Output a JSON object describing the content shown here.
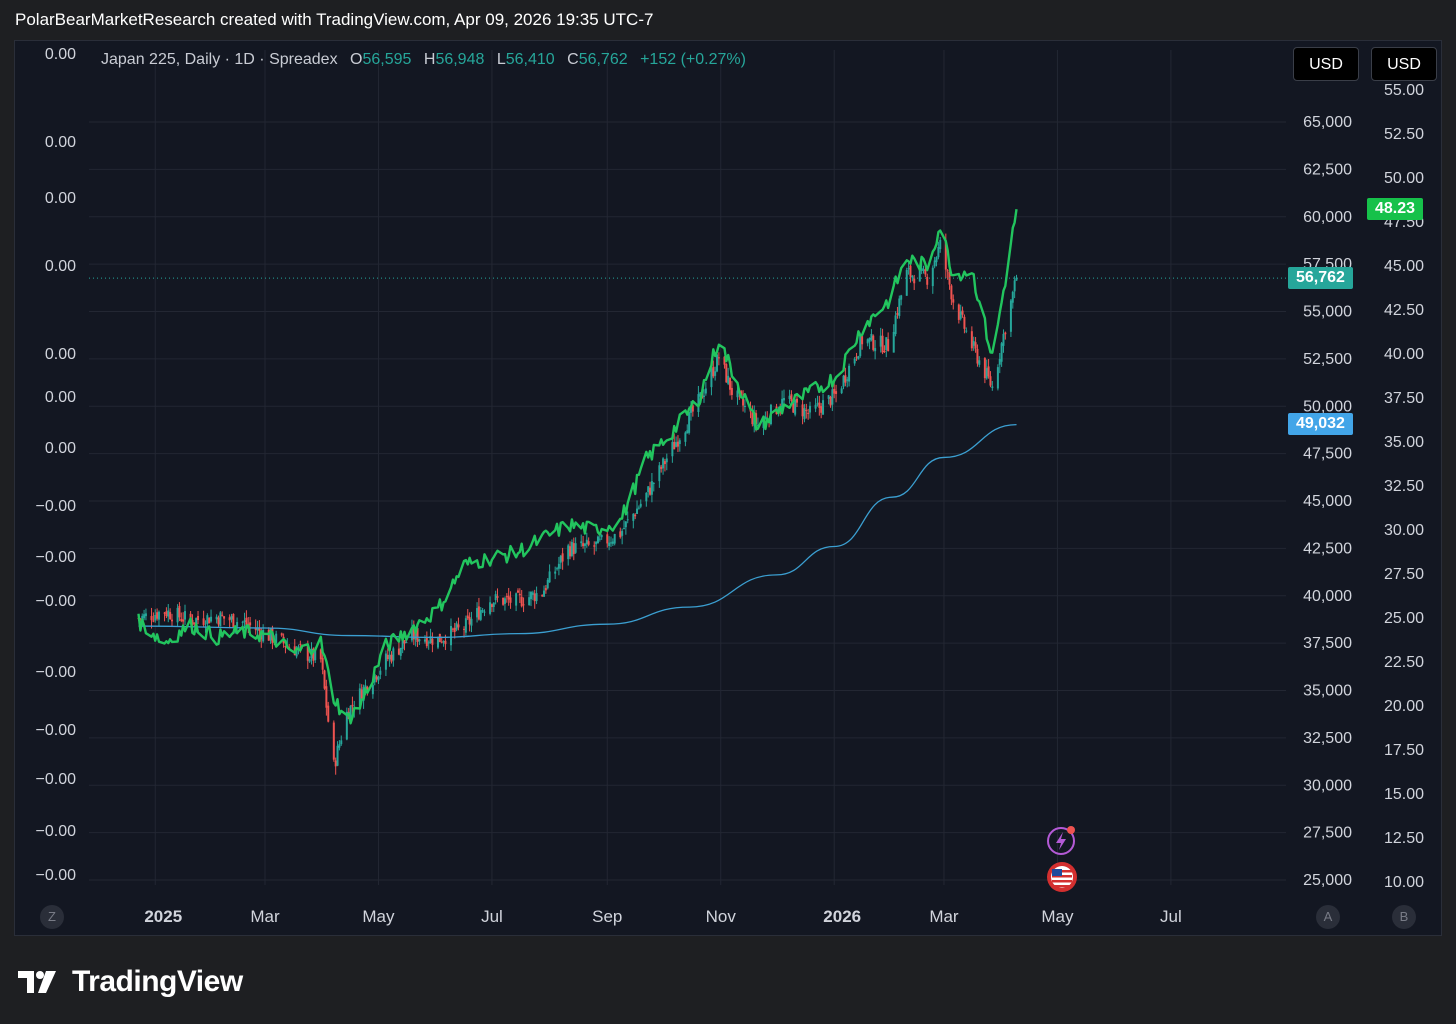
{
  "header": {
    "attribution": "PolarBearMarketResearch created with TradingView.com, Apr 09, 2026 19:35 UTC-7"
  },
  "legend": {
    "symbol": "Japan 225, Daily · 1D · Spreadex",
    "o_label": "O",
    "o_value": "56,595",
    "h_label": "H",
    "h_value": "56,948",
    "l_label": "L",
    "l_value": "56,410",
    "c_label": "C",
    "c_value": "56,762",
    "change": "+152 (+0.27%)"
  },
  "currency_buttons": [
    "USD",
    "USD"
  ],
  "corner_buttons": {
    "left": "Z",
    "right_a": "A",
    "right_b": "B"
  },
  "footer": {
    "brand": "TradingView"
  },
  "colors": {
    "background": "#131722",
    "grid": "#232733",
    "candle_up": "#26a69a",
    "candle_down": "#ef5350",
    "overlay_line": "#22c55e",
    "moving_average": "#3b9fd1",
    "last_price_tag": "#26a69a",
    "ma_tag": "#42a5e8",
    "overlay_tag": "#16c14a"
  },
  "chart_data": {
    "type": "candlestick",
    "x_labels": [
      "2025",
      "Mar",
      "May",
      "Jul",
      "Sep",
      "Nov",
      "2026",
      "Mar",
      "May",
      "Jul"
    ],
    "x_label_dates": [
      "2025-01-01",
      "2025-03-01",
      "2025-05-01",
      "2025-07-01",
      "2025-09-01",
      "2025-11-01",
      "2026-01-01",
      "2026-03-01",
      "2026-05-01",
      "2026-07-01"
    ],
    "bold_x_labels": [
      "2025",
      "2026"
    ],
    "left_axis": {
      "ticks": [
        "0.00",
        "0.00",
        "0.00",
        "0.00",
        "0.00",
        "0.00",
        "0.00",
        "−0.00",
        "−0.00",
        "−0.00",
        "−0.00",
        "−0.00",
        "−0.00",
        "−0.00",
        "−0.00"
      ]
    },
    "price_axis": {
      "min": 25000,
      "max": 65000,
      "ticks": [
        "65,000",
        "62,500",
        "60,000",
        "57,500",
        "55,000",
        "52,500",
        "50,000",
        "47,500",
        "45,000",
        "42,500",
        "40,000",
        "37,500",
        "35,000",
        "32,500",
        "30,000",
        "27,500",
        "25,000"
      ]
    },
    "overlay_axis": {
      "min": 10,
      "max": 55,
      "ticks": [
        "55.00",
        "52.50",
        "50.00",
        "47.50",
        "45.00",
        "42.50",
        "40.00",
        "37.50",
        "35.00",
        "32.50",
        "30.00",
        "27.50",
        "25.00",
        "22.50",
        "20.00",
        "17.50",
        "15.00",
        "12.50",
        "10.00"
      ]
    },
    "last_price": {
      "value": 56762,
      "label": "56,762"
    },
    "moving_average_last": {
      "value": 49032,
      "label": "49,032"
    },
    "overlay_last": {
      "value": 48.23,
      "label": "48.23"
    },
    "price_path": [
      [
        "2024-12-23",
        38800
      ],
      [
        "2025-01-06",
        39200
      ],
      [
        "2025-01-20",
        38700
      ],
      [
        "2025-02-03",
        38900
      ],
      [
        "2025-02-17",
        38600
      ],
      [
        "2025-03-03",
        37900
      ],
      [
        "2025-03-17",
        37200
      ],
      [
        "2025-03-31",
        36600
      ],
      [
        "2025-04-07",
        31000
      ],
      [
        "2025-04-14",
        33800
      ],
      [
        "2025-04-21",
        34800
      ],
      [
        "2025-05-05",
        36600
      ],
      [
        "2025-05-19",
        37900
      ],
      [
        "2025-06-02",
        37700
      ],
      [
        "2025-06-16",
        38300
      ],
      [
        "2025-06-30",
        39800
      ],
      [
        "2025-07-14",
        39700
      ],
      [
        "2025-07-28",
        40200
      ],
      [
        "2025-08-11",
        42500
      ],
      [
        "2025-08-25",
        42600
      ],
      [
        "2025-09-08",
        43300
      ],
      [
        "2025-09-22",
        45300
      ],
      [
        "2025-10-06",
        47800
      ],
      [
        "2025-10-20",
        50200
      ],
      [
        "2025-10-31",
        52600
      ],
      [
        "2025-11-07",
        50800
      ],
      [
        "2025-11-21",
        49000
      ],
      [
        "2025-12-05",
        50300
      ],
      [
        "2025-12-19",
        49600
      ],
      [
        "2026-01-02",
        50600
      ],
      [
        "2026-01-16",
        53500
      ],
      [
        "2026-01-30",
        53200
      ],
      [
        "2026-02-09",
        57000
      ],
      [
        "2026-02-20",
        56800
      ],
      [
        "2026-02-27",
        58500
      ],
      [
        "2026-03-06",
        55600
      ],
      [
        "2026-03-16",
        53200
      ],
      [
        "2026-03-27",
        51000
      ],
      [
        "2026-04-03",
        54200
      ],
      [
        "2026-04-09",
        56762
      ]
    ],
    "moving_average_path": [
      [
        "2024-12-23",
        38400
      ],
      [
        "2025-03-01",
        38300
      ],
      [
        "2025-04-15",
        37900
      ],
      [
        "2025-06-01",
        37800
      ],
      [
        "2025-07-15",
        38000
      ],
      [
        "2025-09-01",
        38500
      ],
      [
        "2025-10-15",
        39400
      ],
      [
        "2025-12-01",
        41100
      ],
      [
        "2026-01-01",
        42600
      ],
      [
        "2026-02-01",
        45200
      ],
      [
        "2026-03-01",
        47300
      ],
      [
        "2026-04-09",
        49032
      ]
    ],
    "overlay_path": [
      [
        "2024-12-23",
        24.8
      ],
      [
        "2025-01-06",
        23.6
      ],
      [
        "2025-01-20",
        24.6
      ],
      [
        "2025-02-03",
        23.9
      ],
      [
        "2025-02-17",
        24.2
      ],
      [
        "2025-03-03",
        24.0
      ],
      [
        "2025-03-17",
        23.0
      ],
      [
        "2025-03-31",
        23.6
      ],
      [
        "2025-04-07",
        20.5
      ],
      [
        "2025-04-14",
        19.2
      ],
      [
        "2025-04-21",
        20.0
      ],
      [
        "2025-05-05",
        23.4
      ],
      [
        "2025-05-19",
        24.4
      ],
      [
        "2025-06-02",
        25.5
      ],
      [
        "2025-06-16",
        28.0
      ],
      [
        "2025-06-30",
        28.4
      ],
      [
        "2025-07-14",
        28.7
      ],
      [
        "2025-07-28",
        29.5
      ],
      [
        "2025-08-11",
        30.3
      ],
      [
        "2025-08-25",
        30.0
      ],
      [
        "2025-09-08",
        30.5
      ],
      [
        "2025-09-22",
        34.0
      ],
      [
        "2025-10-06",
        35.6
      ],
      [
        "2025-10-20",
        37.4
      ],
      [
        "2025-10-31",
        40.8
      ],
      [
        "2025-11-07",
        39.1
      ],
      [
        "2025-11-21",
        35.8
      ],
      [
        "2025-12-05",
        37.0
      ],
      [
        "2025-12-19",
        37.8
      ],
      [
        "2026-01-02",
        38.7
      ],
      [
        "2026-01-16",
        41.5
      ],
      [
        "2026-01-30",
        43.0
      ],
      [
        "2026-02-09",
        45.4
      ],
      [
        "2026-02-20",
        45.0
      ],
      [
        "2026-02-27",
        47.3
      ],
      [
        "2026-03-06",
        44.5
      ],
      [
        "2026-03-16",
        44.8
      ],
      [
        "2026-03-27",
        39.8
      ],
      [
        "2026-04-03",
        44.2
      ],
      [
        "2026-04-09",
        48.23
      ]
    ]
  }
}
